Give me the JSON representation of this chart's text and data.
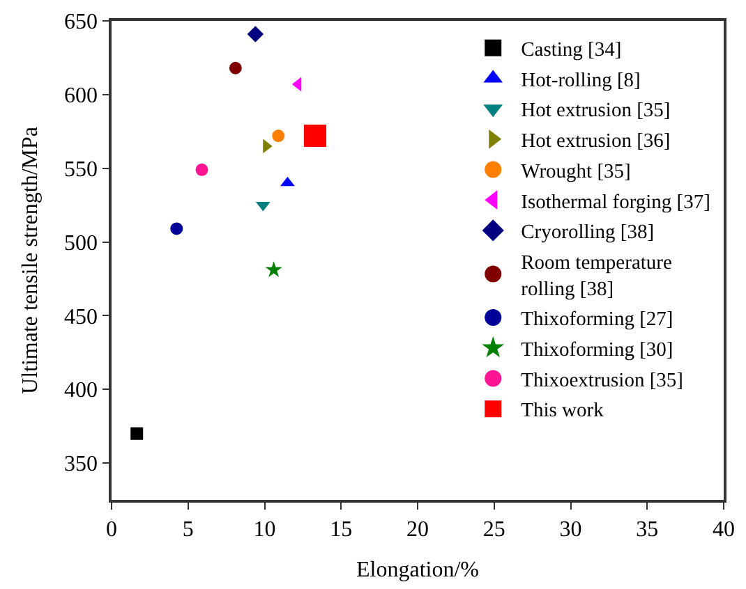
{
  "chart_data": {
    "type": "scatter",
    "xlabel": "Elongation/%",
    "ylabel": "Ultimate tensile strength/MPa",
    "xlim": [
      0,
      40
    ],
    "xticks": [
      0,
      5,
      10,
      15,
      20,
      25,
      30,
      35,
      40
    ],
    "ylim": [
      325,
      650
    ],
    "yticks": [
      350,
      400,
      450,
      500,
      550,
      600,
      650
    ],
    "legend": "top right",
    "series": [
      {
        "name": "Casting [34]",
        "color": "#000000",
        "marker": "square",
        "x": [
          1.65
        ],
        "values": [
          370
        ]
      },
      {
        "name": "Hot-rolling [8]",
        "color": "#0000ff",
        "marker": "triangle-up",
        "x": [
          11.5
        ],
        "values": [
          540
        ]
      },
      {
        "name": "Hot extrusion [35]",
        "color": "#008080",
        "marker": "triangle-down",
        "x": [
          9.9
        ],
        "values": [
          525
        ]
      },
      {
        "name": "Hot extrusion [36]",
        "color": "#808000",
        "marker": "triangle-right",
        "x": [
          10.1
        ],
        "values": [
          565
        ]
      },
      {
        "name": "Wrought [35]",
        "color": "#ff8000",
        "marker": "circle",
        "x": [
          10.9
        ],
        "values": [
          572
        ]
      },
      {
        "name": "Isothermal forging [37]",
        "color": "#ff00ff",
        "marker": "triangle-left",
        "x": [
          12.2
        ],
        "values": [
          607
        ]
      },
      {
        "name": "Cryorolling [38]",
        "color": "#000080",
        "marker": "diamond",
        "x": [
          9.4
        ],
        "values": [
          641
        ]
      },
      {
        "name": "Room temperature rolling [38]",
        "color": "#800000",
        "x": [
          8.1
        ],
        "values": [
          618
        ]
      },
      {
        "name": "Thixoforming [27]",
        "color": "#000099",
        "marker": "circle",
        "x": [
          4.25
        ],
        "values": [
          509
        ]
      },
      {
        "name": "Thixoforming [30]",
        "color": "#008000",
        "marker": "star",
        "x": [
          10.6
        ],
        "values": [
          481
        ]
      },
      {
        "name": "Thixoextrusion [35]",
        "color": "#ff1493",
        "x": [
          5.9
        ],
        "values": [
          549
        ]
      },
      {
        "name": "This work",
        "color": "#ff0000",
        "marker": "square",
        "x": [
          13.3
        ],
        "values": [
          572
        ]
      }
    ]
  }
}
